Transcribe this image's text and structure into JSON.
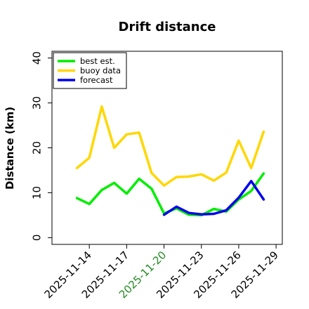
{
  "chart_data": {
    "type": "line",
    "title": "Drift distance",
    "xlabel": "",
    "ylabel": "Distance (km)",
    "ylim": [
      -1.5,
      41.5
    ],
    "yticks": [
      0,
      10,
      20,
      30,
      40
    ],
    "xlim": [
      "2025-11-11T00:00",
      "2025-11-29T12:00"
    ],
    "xticks": [
      "2025-11-14",
      "2025-11-17",
      "2025-11-20",
      "2025-11-23",
      "2025-11-26",
      "2025-11-29"
    ],
    "highlighted_tick": "2025-11-20",
    "highlight_color": "#228b22",
    "grid": false,
    "legend_position": "top-left",
    "series": [
      {
        "name": "best est.",
        "color": "#00ee00",
        "points": [
          [
            "2025-11-13T00:00",
            8.8
          ],
          [
            "2025-11-14T00:00",
            7.5
          ],
          [
            "2025-11-15T00:00",
            10.6
          ],
          [
            "2025-11-16T00:00",
            12.2
          ],
          [
            "2025-11-17T00:00",
            9.8
          ],
          [
            "2025-11-18T00:00",
            13.1
          ],
          [
            "2025-11-19T00:00",
            10.9
          ],
          [
            "2025-11-20T00:00",
            5.4
          ],
          [
            "2025-11-21T00:00",
            6.5
          ],
          [
            "2025-11-22T00:00",
            5.1
          ],
          [
            "2025-11-23T00:00",
            5.0
          ],
          [
            "2025-11-24T00:00",
            6.4
          ],
          [
            "2025-11-25T00:00",
            5.8
          ],
          [
            "2025-11-26T00:00",
            8.5
          ],
          [
            "2025-11-27T00:00",
            10.4
          ],
          [
            "2025-11-28T00:00",
            14.3
          ]
        ]
      },
      {
        "name": "buoy data",
        "color": "#ffd700",
        "points": [
          [
            "2025-11-13T00:00",
            15.5
          ],
          [
            "2025-11-14T00:00",
            17.8
          ],
          [
            "2025-11-15T00:00",
            29.2
          ],
          [
            "2025-11-16T00:00",
            20.0
          ],
          [
            "2025-11-17T00:00",
            23.0
          ],
          [
            "2025-11-18T00:00",
            23.4
          ],
          [
            "2025-11-19T00:00",
            14.4
          ],
          [
            "2025-11-20T00:00",
            11.6
          ],
          [
            "2025-11-21T00:00",
            13.5
          ],
          [
            "2025-11-22T00:00",
            13.6
          ],
          [
            "2025-11-23T00:00",
            14.1
          ],
          [
            "2025-11-24T00:00",
            12.7
          ],
          [
            "2025-11-25T00:00",
            14.5
          ],
          [
            "2025-11-26T00:00",
            21.6
          ],
          [
            "2025-11-27T00:00",
            15.5
          ],
          [
            "2025-11-28T00:00",
            23.6
          ]
        ]
      },
      {
        "name": "forecast",
        "color": "#0000ee",
        "points": [
          [
            "2025-11-20T00:00",
            5.1
          ],
          [
            "2025-11-21T00:00",
            6.9
          ],
          [
            "2025-11-22T00:00",
            5.5
          ],
          [
            "2025-11-23T00:00",
            5.2
          ],
          [
            "2025-11-24T00:00",
            5.3
          ],
          [
            "2025-11-25T00:00",
            6.1
          ],
          [
            "2025-11-26T00:00",
            8.9
          ],
          [
            "2025-11-27T00:00",
            12.6
          ],
          [
            "2025-11-28T00:00",
            8.5
          ]
        ]
      }
    ]
  }
}
